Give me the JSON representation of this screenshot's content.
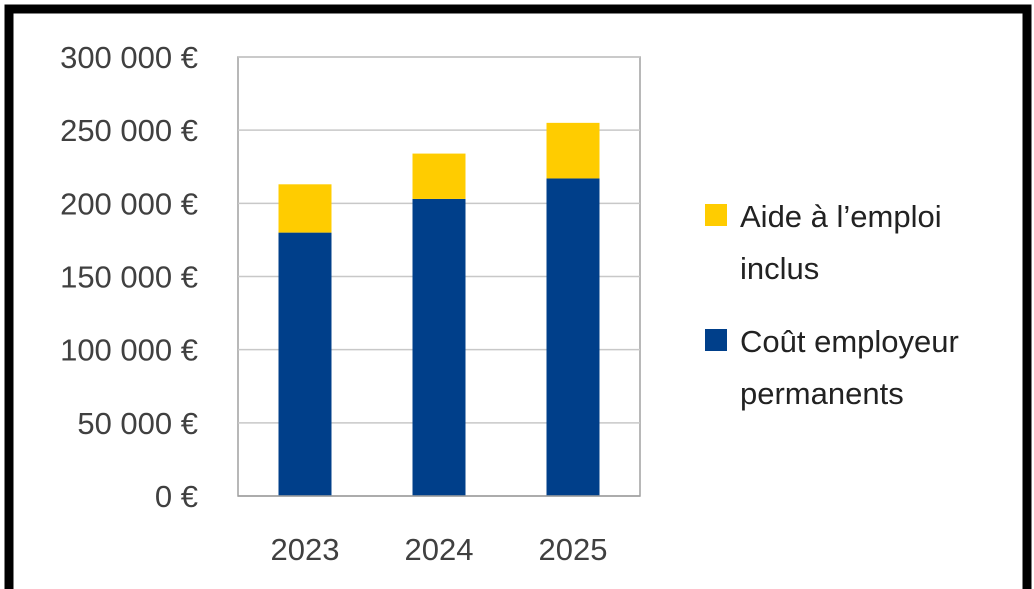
{
  "chart_data": {
    "type": "bar",
    "stacked": true,
    "title": "",
    "xlabel": "",
    "ylabel": "",
    "categories": [
      "2023",
      "2024",
      "2025"
    ],
    "series": [
      {
        "name": "Coût employeur permanents",
        "name_lines": [
          "Coût employeur",
          "permanents"
        ],
        "color": "#003f8a",
        "values": [
          180000,
          203000,
          217000
        ]
      },
      {
        "name": "Aide à l’emploi inclus",
        "name_lines": [
          "Aide à l’emploi",
          "inclus"
        ],
        "color": "#ffcc00",
        "values": [
          33000,
          31000,
          38000
        ]
      }
    ],
    "ylim": [
      0,
      300000
    ],
    "yticks": [
      0,
      50000,
      100000,
      150000,
      200000,
      250000,
      300000
    ],
    "ytick_labels": [
      "0 €",
      "50 000 €",
      "100 000 €",
      "150 000 €",
      "200 000 €",
      "250 000 €",
      "300 000 €"
    ],
    "grid": true,
    "legend_position": "right",
    "legend_order": [
      1,
      0
    ]
  },
  "colors": {
    "border": "#000000",
    "grid": "#c8c8c8",
    "axis": "#a0a0a0"
  }
}
